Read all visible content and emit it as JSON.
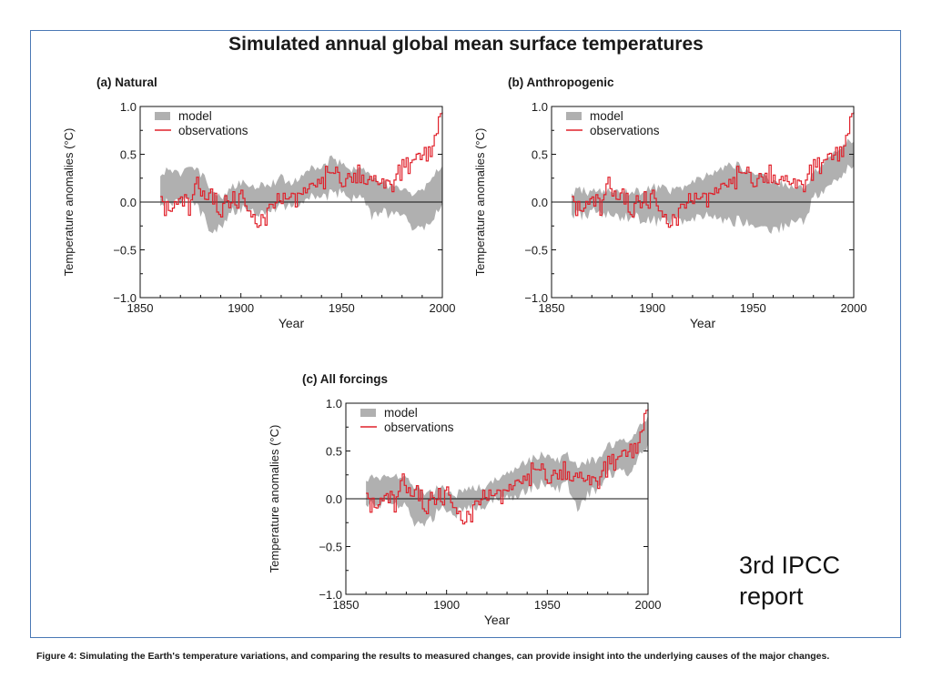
{
  "main_title": "Simulated annual global mean surface temperatures",
  "note_lines": [
    "3rd IPCC",
    "report"
  ],
  "caption": "Figure 4: Simulating the Earth's temperature variations, and comparing the results to measured changes, can provide insight into the underlying causes of the major changes.",
  "colors": {
    "observations": "#e0202a",
    "model": "#b0b0b0",
    "frame": "#4a78b5"
  },
  "chart_data": [
    {
      "type": "line",
      "title": "(a) Natural",
      "xlabel": "Year",
      "ylabel": "Temperature anomalies (°C)",
      "xlim": [
        1850,
        2000
      ],
      "ylim": [
        -1.0,
        1.0
      ],
      "xticks": [
        "1850",
        "1900",
        "1950",
        "2000"
      ],
      "yticks": [
        "1.0",
        "0.5",
        "0.0",
        "−0.5",
        "−1.0"
      ],
      "grid": false,
      "legend": "top-left",
      "legend_labels": [
        "model",
        "observations"
      ],
      "series": [
        {
          "name": "model",
          "kind": "band",
          "x": [
            1860,
            1865,
            1870,
            1875,
            1880,
            1885,
            1890,
            1895,
            1900,
            1905,
            1910,
            1915,
            1920,
            1925,
            1930,
            1935,
            1940,
            1945,
            1950,
            1955,
            1960,
            1965,
            1970,
            1975,
            1980,
            1985,
            1990,
            1995,
            2000
          ],
          "low": [
            0.0,
            0.0,
            0.02,
            0.0,
            -0.1,
            -0.3,
            -0.25,
            -0.1,
            -0.08,
            -0.1,
            -0.1,
            -0.05,
            -0.05,
            -0.02,
            0.0,
            0.05,
            0.05,
            0.08,
            0.1,
            0.05,
            0.05,
            -0.15,
            -0.1,
            -0.15,
            -0.1,
            -0.25,
            -0.3,
            -0.15,
            -0.05
          ],
          "high": [
            0.3,
            0.35,
            0.3,
            0.35,
            0.3,
            0.15,
            0.05,
            0.15,
            0.2,
            0.15,
            0.2,
            0.2,
            0.25,
            0.2,
            0.28,
            0.35,
            0.35,
            0.45,
            0.4,
            0.35,
            0.35,
            0.25,
            0.2,
            0.15,
            0.15,
            0.1,
            0.1,
            0.3,
            0.35
          ]
        },
        {
          "name": "observations",
          "kind": "line",
          "x": [
            1860,
            1865,
            1870,
            1875,
            1878,
            1880,
            1885,
            1890,
            1895,
            1900,
            1905,
            1910,
            1915,
            1920,
            1925,
            1930,
            1935,
            1940,
            1944,
            1950,
            1955,
            1960,
            1965,
            1970,
            1975,
            1980,
            1985,
            1990,
            1995,
            1998,
            2000
          ],
          "y": [
            -0.05,
            -0.1,
            0.05,
            -0.05,
            0.3,
            0.0,
            0.05,
            -0.05,
            0.0,
            0.05,
            -0.15,
            -0.2,
            -0.05,
            0.0,
            0.0,
            0.05,
            0.1,
            0.2,
            0.35,
            0.2,
            0.3,
            0.3,
            0.2,
            0.25,
            0.2,
            0.35,
            0.4,
            0.5,
            0.55,
            0.8,
            0.85
          ]
        }
      ]
    },
    {
      "type": "line",
      "title": "(b) Anthropogenic",
      "xlabel": "Year",
      "ylabel": "Temperature anomalies (°C)",
      "xlim": [
        1850,
        2000
      ],
      "ylim": [
        -1.0,
        1.0
      ],
      "xticks": [
        "1850",
        "1900",
        "1950",
        "2000"
      ],
      "yticks": [
        "1.0",
        "0.5",
        "0.0",
        "−0.5",
        "−1.0"
      ],
      "grid": false,
      "legend": "top-left",
      "legend_labels": [
        "model",
        "observations"
      ],
      "series": [
        {
          "name": "model",
          "kind": "band",
          "x": [
            1860,
            1865,
            1870,
            1875,
            1880,
            1885,
            1890,
            1895,
            1900,
            1905,
            1910,
            1915,
            1920,
            1925,
            1930,
            1935,
            1940,
            1945,
            1950,
            1955,
            1960,
            1965,
            1970,
            1975,
            1980,
            1985,
            1990,
            1995,
            2000
          ],
          "low": [
            -0.12,
            -0.15,
            -0.1,
            -0.12,
            -0.15,
            -0.15,
            -0.15,
            -0.18,
            -0.2,
            -0.2,
            -0.18,
            -0.2,
            -0.2,
            -0.15,
            -0.15,
            -0.2,
            -0.2,
            -0.2,
            -0.25,
            -0.25,
            -0.3,
            -0.25,
            -0.2,
            -0.2,
            0.05,
            0.1,
            0.2,
            0.3,
            0.4
          ],
          "high": [
            0.1,
            0.12,
            0.1,
            0.12,
            0.1,
            0.12,
            0.1,
            0.12,
            0.15,
            0.15,
            0.12,
            0.15,
            0.2,
            0.25,
            0.3,
            0.35,
            0.4,
            0.35,
            0.3,
            0.3,
            0.2,
            0.2,
            0.15,
            0.15,
            0.3,
            0.4,
            0.5,
            0.6,
            0.65
          ]
        },
        {
          "name": "observations",
          "kind": "line",
          "x": [
            1860,
            1865,
            1870,
            1875,
            1878,
            1880,
            1885,
            1890,
            1895,
            1900,
            1905,
            1910,
            1915,
            1920,
            1925,
            1930,
            1935,
            1940,
            1944,
            1950,
            1955,
            1960,
            1965,
            1970,
            1975,
            1980,
            1985,
            1990,
            1995,
            1998,
            2000
          ],
          "y": [
            -0.05,
            -0.1,
            0.05,
            -0.05,
            0.3,
            0.0,
            0.05,
            -0.05,
            0.0,
            0.05,
            -0.15,
            -0.2,
            -0.05,
            0.0,
            0.0,
            0.05,
            0.1,
            0.2,
            0.35,
            0.2,
            0.3,
            0.3,
            0.2,
            0.25,
            0.2,
            0.35,
            0.4,
            0.5,
            0.55,
            0.8,
            0.85
          ]
        }
      ]
    },
    {
      "type": "line",
      "title": "(c) All forcings",
      "xlabel": "Year",
      "ylabel": "Temperature anomalies (°C)",
      "xlim": [
        1850,
        2000
      ],
      "ylim": [
        -1.0,
        1.0
      ],
      "xticks": [
        "1850",
        "1900",
        "1950",
        "2000"
      ],
      "yticks": [
        "1.0",
        "0.5",
        "0.0",
        "−0.5",
        "−1.0"
      ],
      "grid": false,
      "legend": "top-left",
      "legend_labels": [
        "model",
        "observations"
      ],
      "series": [
        {
          "name": "model",
          "kind": "band",
          "x": [
            1860,
            1865,
            1870,
            1875,
            1880,
            1885,
            1890,
            1895,
            1900,
            1905,
            1910,
            1915,
            1920,
            1925,
            1930,
            1935,
            1940,
            1945,
            1950,
            1955,
            1960,
            1965,
            1970,
            1975,
            1980,
            1985,
            1990,
            1995,
            2000
          ],
          "low": [
            -0.05,
            -0.05,
            -0.05,
            -0.05,
            -0.1,
            -0.3,
            -0.25,
            -0.15,
            -0.1,
            -0.15,
            -0.1,
            -0.1,
            -0.05,
            0.0,
            0.0,
            0.05,
            0.1,
            0.15,
            0.15,
            0.1,
            0.15,
            -0.1,
            0.05,
            0.1,
            0.25,
            0.3,
            0.25,
            0.45,
            0.55
          ],
          "high": [
            0.2,
            0.25,
            0.2,
            0.25,
            0.2,
            0.1,
            0.05,
            0.1,
            0.1,
            0.05,
            0.1,
            0.1,
            0.15,
            0.2,
            0.25,
            0.35,
            0.4,
            0.45,
            0.45,
            0.4,
            0.45,
            0.35,
            0.4,
            0.4,
            0.55,
            0.6,
            0.6,
            0.75,
            0.85
          ]
        },
        {
          "name": "observations",
          "kind": "line",
          "x": [
            1860,
            1865,
            1870,
            1875,
            1878,
            1880,
            1885,
            1890,
            1895,
            1900,
            1905,
            1910,
            1915,
            1920,
            1925,
            1930,
            1935,
            1940,
            1944,
            1950,
            1955,
            1960,
            1965,
            1970,
            1975,
            1980,
            1985,
            1990,
            1995,
            1998,
            2000
          ],
          "y": [
            -0.05,
            -0.1,
            0.05,
            -0.05,
            0.3,
            0.0,
            0.05,
            -0.05,
            0.0,
            0.05,
            -0.15,
            -0.2,
            -0.05,
            0.0,
            0.0,
            0.05,
            0.1,
            0.2,
            0.35,
            0.2,
            0.3,
            0.3,
            0.2,
            0.25,
            0.2,
            0.35,
            0.4,
            0.5,
            0.55,
            0.8,
            0.85
          ]
        }
      ]
    }
  ]
}
